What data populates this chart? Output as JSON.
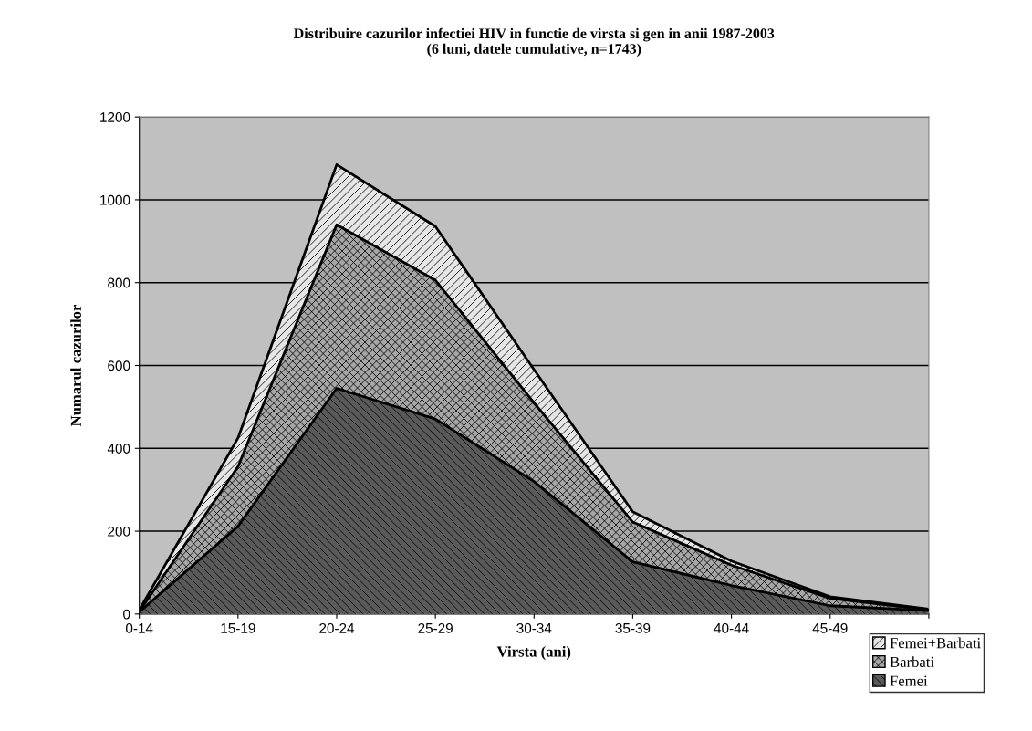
{
  "chart_data": {
    "type": "area",
    "title": "Distribuire cazurilor infectiei HIV in functie de virsta si gen in anii 1987-2003\n(6 luni, datele cumulative, n=1743)",
    "xlabel": "Virsta (ani)",
    "ylabel": "Numarul cazurilor",
    "categories": [
      "0-14",
      "15-19",
      "20-24",
      "25-29",
      "30-34",
      "35-39",
      "40-44",
      "45-49",
      null
    ],
    "series": [
      {
        "name": "Femei+Barbati",
        "color": "#e6e6e6",
        "values": [
          10,
          425,
          1085,
          936,
          590,
          247,
          128,
          42,
          12
        ]
      },
      {
        "name": "Barbati",
        "color": "#a6a6a6",
        "values": [
          6,
          356,
          940,
          806,
          510,
          222,
          118,
          38,
          10
        ]
      },
      {
        "name": "Femei",
        "color": "#5a5a5a",
        "values": [
          5,
          212,
          545,
          471,
          320,
          126,
          69,
          20,
          8
        ]
      }
    ],
    "ylim": [
      0,
      1200
    ],
    "yticks": [
      0,
      200,
      400,
      600,
      800,
      1000,
      1200
    ],
    "grid": "y",
    "legend": "bottom right"
  }
}
